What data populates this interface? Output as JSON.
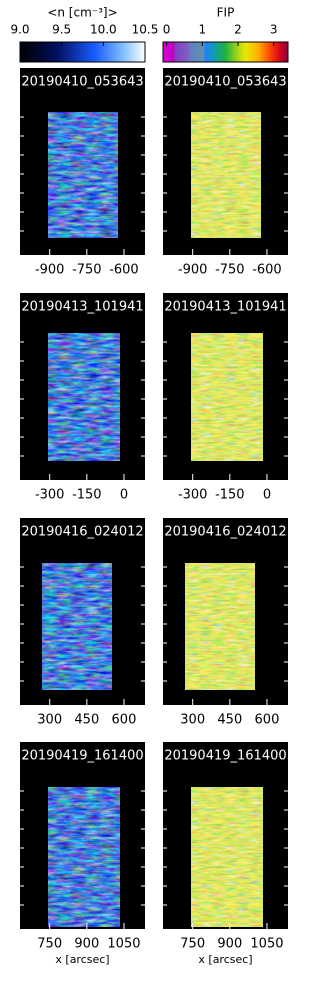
{
  "colorbars": [
    {
      "label": "<n [cm⁻³]>",
      "lim": [
        9,
        10.5
      ],
      "ticks": [
        {
          "value": 9,
          "label": "9.0"
        },
        {
          "value": 9.5,
          "label": "9.5"
        },
        {
          "value": 10,
          "label": "10.0"
        },
        {
          "value": 10.5,
          "label": "10.5"
        }
      ]
    },
    {
      "label": "FIP",
      "lim": [
        -0.1,
        3.4
      ],
      "ticks": [
        0,
        1,
        2,
        3
      ]
    }
  ],
  "rows": [
    {
      "titles": [
        "20190410_053643",
        "20190410_053643"
      ],
      "xlim": [
        -1020,
        -515
      ],
      "xticks": [
        -900,
        -750,
        -600
      ]
    },
    {
      "titles": [
        "20190413_101941",
        "20190413_101941"
      ],
      "xlim": [
        -420,
        85
      ],
      "xticks": [
        -300,
        -150,
        0
      ]
    },
    {
      "titles": [
        "20190416_024012",
        "20190416_024012"
      ],
      "xlim": [
        180,
        685
      ],
      "xticks": [
        300,
        450,
        600
      ]
    },
    {
      "titles": [
        "20190419_161400",
        "20190419_161400"
      ],
      "xlim": [
        630,
        1135
      ],
      "xticks": [
        750,
        900,
        1050
      ]
    }
  ],
  "xlabel": "x [arcsec]"
}
